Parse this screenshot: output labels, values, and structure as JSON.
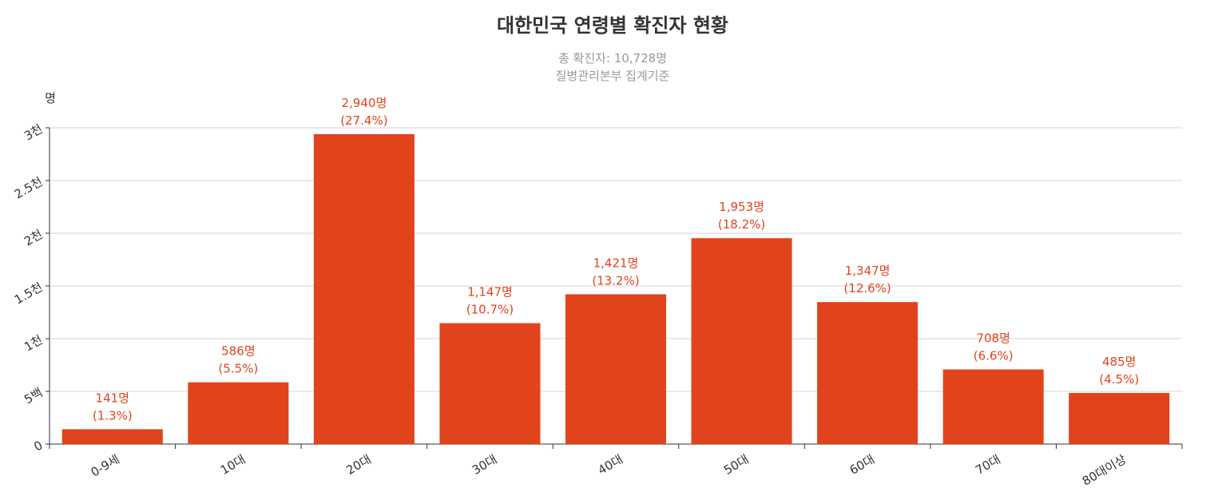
{
  "chart_data": {
    "type": "bar",
    "title": "대한민국 연령별 확진자 현황",
    "subtitle": [
      "총 확진자: 10,728명",
      "질병관리본부  집계기준"
    ],
    "y_label": "명",
    "categories": [
      "0-9세",
      "10대",
      "20대",
      "30대",
      "40대",
      "50대",
      "60대",
      "70대",
      "80대이상"
    ],
    "values": [
      141,
      586,
      2940,
      1147,
      1421,
      1953,
      1347,
      708,
      485
    ],
    "value_labels": [
      "141명",
      "586명",
      "2,940명",
      "1,147명",
      "1,421명",
      "1,953명",
      "1,347명",
      "708명",
      "485명"
    ],
    "share_labels": [
      "(1.3%)",
      "(5.5%)",
      "(27.4%)",
      "(10.7%)",
      "(13.2%)",
      "(18.2%)",
      "(12.6%)",
      "(6.6%)",
      "(4.5%)"
    ],
    "color": "#e1441c",
    "ylim": [
      0,
      3000
    ],
    "yticks": [
      0,
      {
        "value": 500,
        "label": "5백"
      },
      {
        "value": 1000,
        "label": "1천"
      },
      {
        "value": 1500,
        "label": "1.5천"
      },
      {
        "value": 2000,
        "label": "2천"
      },
      {
        "value": 2500,
        "label": "2.5천"
      },
      {
        "value": 3000,
        "label": "3천"
      }
    ],
    "grid": true
  }
}
